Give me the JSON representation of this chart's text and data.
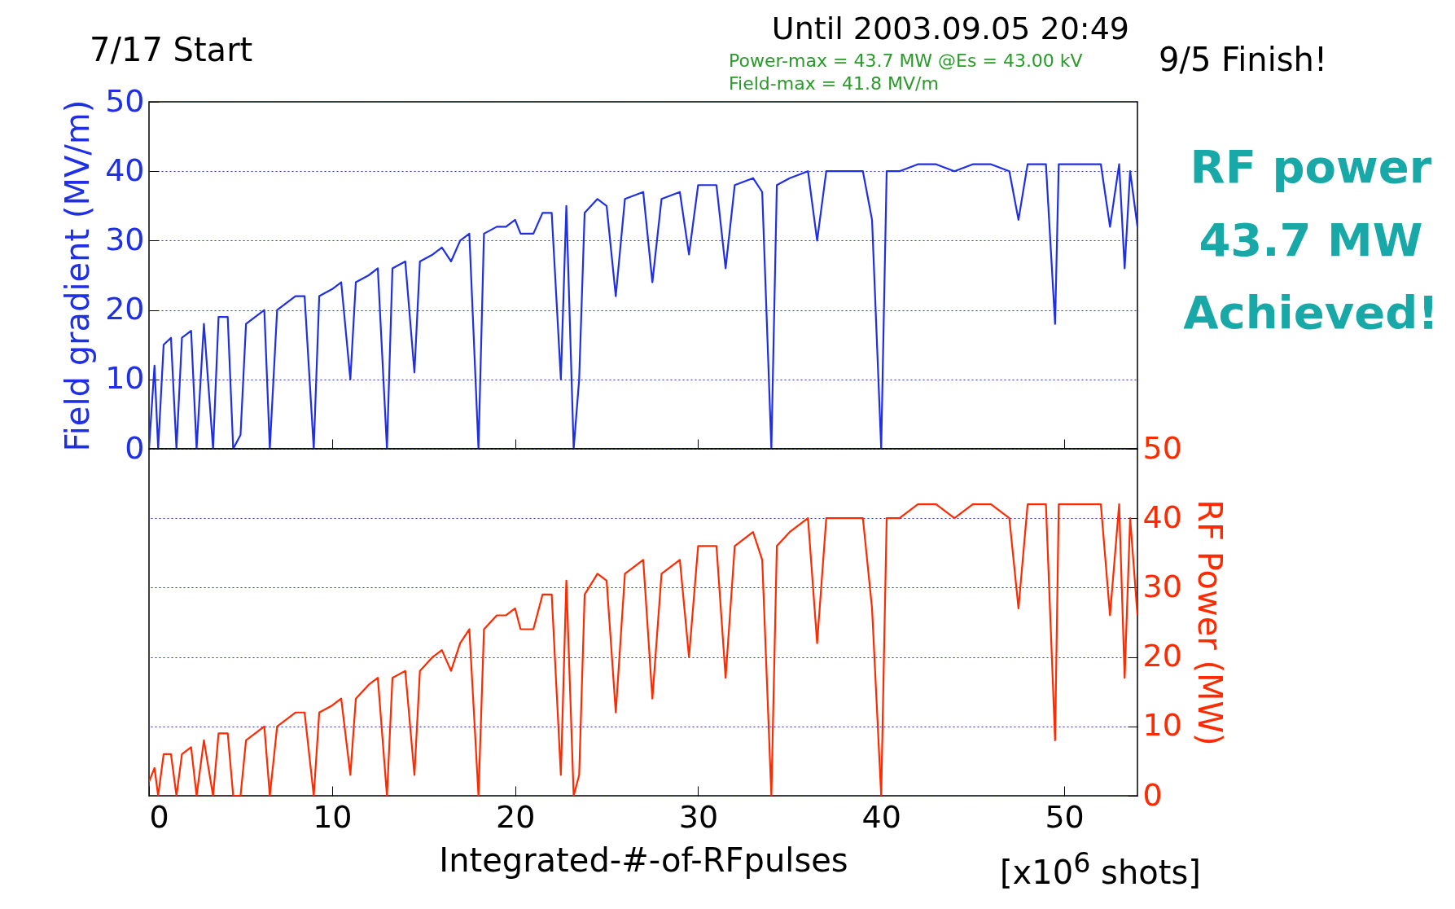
{
  "chart_data": [
    {
      "type": "line",
      "title": "Until 2003.09.05 20:49",
      "ylabel": "Field gradient (MV/m)",
      "annotations": [
        "7/17 Start",
        "Power-max = 43.7 MW @Es = 43.00 kV",
        "Field-max = 41.8 MV/m",
        "9/5 Finish!",
        "RF power 43.7 MW Achieved!"
      ],
      "x": [
        0,
        0.3,
        0.5,
        0.8,
        1.2,
        1.5,
        1.8,
        2.3,
        2.6,
        3,
        3.5,
        3.8,
        4.3,
        4.6,
        5,
        5.3,
        5.8,
        6.3,
        6.6,
        7,
        7.5,
        8,
        8.5,
        9,
        9.3,
        10,
        10.5,
        11,
        11.3,
        12,
        12.5,
        13,
        13.3,
        14,
        14.5,
        14.8,
        15.5,
        16,
        16.5,
        17,
        17.5,
        18,
        18.3,
        19,
        19.5,
        20,
        20.3,
        21,
        21.5,
        22,
        22.5,
        22.8,
        23.2,
        23.5,
        23.8,
        24.5,
        25,
        25.5,
        26,
        27,
        27.5,
        28,
        29,
        29.5,
        30,
        31,
        31.5,
        32,
        33,
        33.5,
        34,
        34.3,
        35,
        36,
        36.5,
        37,
        38,
        39,
        39.5,
        40,
        40.3,
        41,
        42,
        43,
        44,
        45,
        46,
        47,
        47.5,
        48,
        49,
        49.5,
        49.7,
        50,
        51,
        52,
        52.5,
        53,
        53.3,
        53.6,
        54
      ],
      "series": [
        {
          "color": "#1f2fe6",
          "values": [
            0,
            12,
            0,
            15,
            16,
            0,
            16,
            17,
            0,
            18,
            0,
            19,
            19,
            0,
            2,
            18,
            19,
            20,
            0,
            20,
            21,
            22,
            22,
            0,
            22,
            23,
            24,
            10,
            24,
            25,
            26,
            0,
            26,
            27,
            11,
            27,
            28,
            29,
            27,
            30,
            31,
            0,
            31,
            32,
            32,
            33,
            31,
            31,
            34,
            34,
            10,
            35,
            0,
            10,
            34,
            36,
            35,
            22,
            36,
            37,
            24,
            36,
            37,
            28,
            38,
            38,
            26,
            38,
            39,
            37,
            0,
            38,
            39,
            40,
            30,
            40,
            40,
            40,
            33,
            0,
            40,
            40,
            41,
            41,
            40,
            41,
            41,
            40,
            33,
            41,
            41,
            18,
            41,
            41,
            41,
            41,
            32,
            41,
            26,
            40,
            32
          ]
        }
      ],
      "xlim": [
        0,
        54
      ],
      "xticks": [
        0,
        10,
        20,
        30,
        40,
        50
      ],
      "ylim": [
        0,
        50
      ],
      "yticks": [
        0,
        10,
        20,
        30,
        40,
        50
      ],
      "grid": "y",
      "tick_labels": "y",
      "line_style": "solid"
    },
    {
      "type": "line",
      "xlabel": "Integrated-#-of-RFpulses",
      "y2label": "RF Power (MW)",
      "annotations": [
        "[x10$^{6}$ shots]"
      ],
      "x": [
        0,
        0.3,
        0.5,
        0.8,
        1.2,
        1.5,
        1.8,
        2.3,
        2.6,
        3,
        3.5,
        3.8,
        4.3,
        4.6,
        5,
        5.3,
        5.8,
        6.3,
        6.6,
        7,
        7.5,
        8,
        8.5,
        9,
        9.3,
        10,
        10.5,
        11,
        11.3,
        12,
        12.5,
        13,
        13.3,
        14,
        14.5,
        14.8,
        15.5,
        16,
        16.5,
        17,
        17.5,
        18,
        18.3,
        19,
        19.5,
        20,
        20.3,
        21,
        21.5,
        22,
        22.5,
        22.8,
        23.2,
        23.5,
        23.8,
        24.5,
        25,
        25.5,
        26,
        27,
        27.5,
        28,
        29,
        29.5,
        30,
        31,
        31.5,
        32,
        33,
        33.5,
        34,
        34.3,
        35,
        36,
        36.5,
        37,
        38,
        39,
        39.5,
        40,
        40.3,
        41,
        42,
        43,
        44,
        45,
        46,
        47,
        47.5,
        48,
        49,
        49.5,
        49.7,
        50,
        51,
        52,
        52.5,
        53,
        53.3,
        53.6,
        54
      ],
      "series": [
        {
          "color": "#ff2a00",
          "axis": "y2",
          "values": [
            2,
            4,
            0,
            6,
            6,
            0,
            6,
            7,
            0,
            8,
            0,
            9,
            9,
            0,
            0,
            8,
            9,
            10,
            0,
            10,
            11,
            12,
            12,
            0,
            12,
            13,
            14,
            3,
            14,
            16,
            17,
            0,
            17,
            18,
            3,
            18,
            20,
            21,
            18,
            22,
            24,
            0,
            24,
            26,
            26,
            27,
            24,
            24,
            29,
            29,
            3,
            31,
            0,
            3,
            29,
            32,
            31,
            12,
            32,
            34,
            14,
            32,
            34,
            20,
            36,
            36,
            17,
            36,
            38,
            34,
            0,
            36,
            38,
            40,
            22,
            40,
            40,
            40,
            27,
            0,
            40,
            40,
            42,
            42,
            40,
            42,
            42,
            40,
            27,
            42,
            42,
            8,
            42,
            42,
            42,
            42,
            26,
            42,
            17,
            40,
            26
          ]
        }
      ],
      "xlim": [
        0,
        54
      ],
      "xticks": [
        0,
        10,
        20,
        30,
        40,
        50
      ],
      "y2lim": [
        0,
        50
      ],
      "y2ticks": [
        0,
        10,
        20,
        30,
        40,
        50
      ],
      "grid": "y",
      "line_style": "solid"
    }
  ]
}
